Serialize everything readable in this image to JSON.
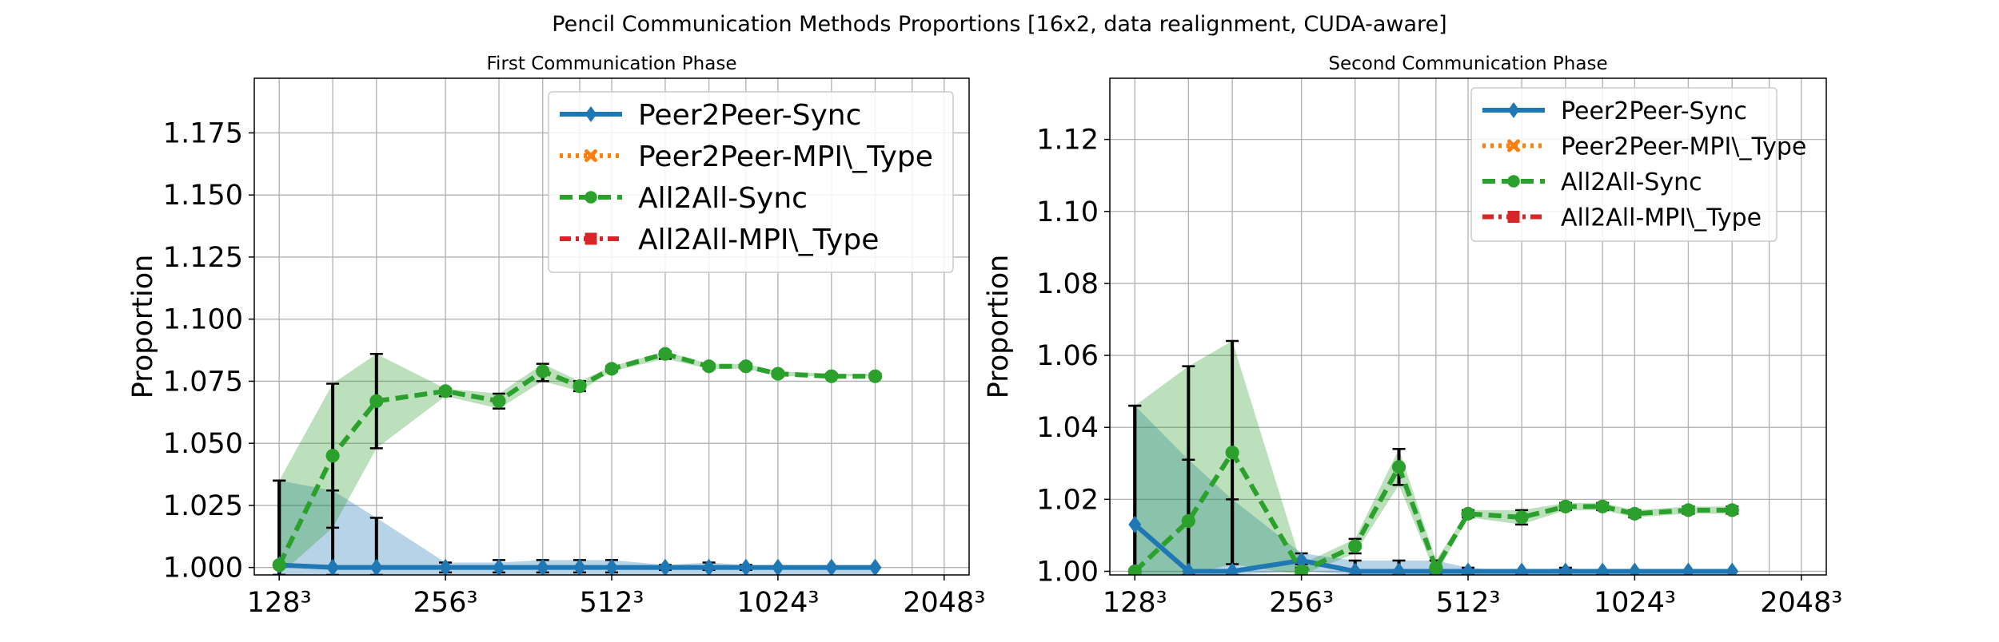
{
  "figure": {
    "suptitle": "Pencil Communication Methods Proportions [16x2, data realignment, CUDA-aware]"
  },
  "colors": {
    "Peer2Peer-Sync": "#1f77b4",
    "Peer2Peer-MPI\\_Type": "#ff7f0e",
    "All2All-Sync": "#2ca02c",
    "All2All-MPI\\_Type": "#d62728",
    "errorbar": "#000000"
  },
  "chart_data": [
    {
      "type": "line",
      "title": "First Communication Phase",
      "xlabel": "",
      "ylabel": "Proportion",
      "x_scale": "log2",
      "x_tick_labels": [
        "128³",
        "256³",
        "512³",
        "1024³",
        "2048³"
      ],
      "x": [
        128,
        160,
        192,
        256,
        320,
        384,
        448,
        512,
        640,
        768,
        896,
        1024,
        1280,
        1536,
        1792,
        2048
      ],
      "ylim": [
        0.997,
        1.197
      ],
      "y_ticks": [
        "1.000",
        "1.025",
        "1.050",
        "1.075",
        "1.100",
        "1.125",
        "1.150",
        "1.175"
      ],
      "grid": true,
      "legend_position": "top-right",
      "series": [
        {
          "name": "Peer2Peer-Sync",
          "marker": "diamond",
          "linestyle": "solid",
          "x": [
            128,
            160,
            192,
            256,
            320,
            384,
            448,
            512,
            640,
            768,
            896,
            1024,
            1280,
            1536
          ],
          "values": [
            1.001,
            1.0,
            1.0,
            1.0,
            1.0,
            1.0,
            1.0,
            1.0,
            1.0,
            1.0,
            1.0,
            1.0,
            1.0,
            1.0
          ],
          "band_low": [
            0.997,
            0.997,
            0.997,
            0.997,
            0.997,
            0.997,
            0.997,
            0.997,
            0.997,
            0.997,
            0.997,
            0.997,
            0.997,
            0.997
          ],
          "band_high": [
            1.035,
            1.031,
            1.02,
            1.002,
            1.002,
            1.003,
            1.003,
            1.003,
            1.001,
            1.002,
            1.001,
            1.0,
            1.0,
            1.0
          ],
          "err_low": [
            0.997,
            0.997,
            0.997,
            0.998,
            0.998,
            0.998,
            0.998,
            0.998,
            0.999,
            0.999,
            0.999,
            1.0,
            1.0,
            1.0
          ],
          "err_high": [
            1.035,
            1.031,
            1.02,
            1.002,
            1.003,
            1.003,
            1.003,
            1.003,
            1.001,
            1.002,
            1.001,
            1.0,
            1.0,
            1.0
          ]
        },
        {
          "name": "Peer2Peer-MPI\\_Type",
          "marker": "x",
          "linestyle": "dotted",
          "x": [],
          "values": []
        },
        {
          "name": "All2All-Sync",
          "marker": "circle",
          "linestyle": "dashed",
          "x": [
            128,
            160,
            192,
            256,
            320,
            384,
            448,
            512,
            640,
            768,
            896,
            1024,
            1280,
            1536
          ],
          "values": [
            1.001,
            1.045,
            1.067,
            1.071,
            1.067,
            1.079,
            1.073,
            1.08,
            1.086,
            1.081,
            1.081,
            1.078,
            1.077,
            1.077
          ],
          "band_low": [
            0.997,
            1.016,
            1.048,
            1.069,
            1.064,
            1.075,
            1.071,
            1.079,
            1.084,
            1.08,
            1.08,
            1.077,
            1.077,
            1.077
          ],
          "band_high": [
            1.035,
            1.074,
            1.086,
            1.072,
            1.07,
            1.082,
            1.075,
            1.081,
            1.087,
            1.082,
            1.082,
            1.079,
            1.078,
            1.078
          ],
          "err_low": [
            0.997,
            1.016,
            1.048,
            1.069,
            1.064,
            1.075,
            1.071,
            1.079,
            1.084,
            1.08,
            1.08,
            1.077,
            1.077,
            1.077
          ],
          "err_high": [
            1.035,
            1.074,
            1.086,
            1.072,
            1.07,
            1.082,
            1.075,
            1.081,
            1.087,
            1.082,
            1.082,
            1.079,
            1.078,
            1.078
          ]
        },
        {
          "name": "All2All-MPI\\_Type",
          "marker": "square",
          "linestyle": "dashdot",
          "x": [],
          "values": []
        }
      ]
    },
    {
      "type": "line",
      "title": "Second Communication Phase",
      "xlabel": "",
      "ylabel": "Proportion",
      "x_scale": "log2",
      "x_tick_labels": [
        "128³",
        "256³",
        "512³",
        "1024³",
        "2048³"
      ],
      "x": [
        128,
        160,
        192,
        256,
        320,
        384,
        448,
        512,
        640,
        768,
        896,
        1024,
        1280,
        1536,
        1792,
        2048
      ],
      "ylim": [
        0.999,
        1.137
      ],
      "y_ticks": [
        "1.00",
        "1.02",
        "1.04",
        "1.06",
        "1.08",
        "1.10",
        "1.12"
      ],
      "grid": true,
      "legend_position": "top-right",
      "series": [
        {
          "name": "Peer2Peer-Sync",
          "marker": "diamond",
          "linestyle": "solid",
          "x": [
            128,
            160,
            192,
            256,
            320,
            384,
            448,
            512,
            640,
            768,
            896,
            1024,
            1280,
            1536
          ],
          "values": [
            1.013,
            1.0,
            1.0,
            1.003,
            1.0,
            1.0,
            1.0,
            1.0,
            1.0,
            1.0,
            1.0,
            1.0,
            1.0,
            1.0
          ],
          "band_low": [
            0.999,
            0.999,
            0.999,
            1.0,
            0.999,
            0.999,
            0.999,
            0.999,
            0.999,
            0.999,
            0.999,
            0.999,
            0.999,
            0.999
          ],
          "band_high": [
            1.046,
            1.031,
            1.02,
            1.005,
            1.003,
            1.003,
            1.003,
            1.001,
            1.0,
            1.001,
            1.0,
            1.0,
            1.0,
            1.0
          ],
          "err_low": [
            0.999,
            0.999,
            0.999,
            1.001,
            0.999,
            0.999,
            0.999,
            0.999,
            0.999,
            0.999,
            0.999,
            1.0,
            1.0,
            1.0
          ],
          "err_high": [
            1.046,
            1.031,
            1.02,
            1.005,
            1.003,
            1.003,
            1.003,
            1.001,
            1.0,
            1.001,
            1.0,
            1.0,
            1.0,
            1.0
          ]
        },
        {
          "name": "Peer2Peer-MPI\\_Type",
          "marker": "x",
          "linestyle": "dotted",
          "x": [],
          "values": []
        },
        {
          "name": "All2All-Sync",
          "marker": "circle",
          "linestyle": "dashed",
          "x": [
            128,
            160,
            192,
            256,
            320,
            384,
            448,
            512,
            640,
            768,
            896,
            1024,
            1280,
            1536
          ],
          "values": [
            1.0,
            1.014,
            1.033,
            1.0,
            1.007,
            1.029,
            1.001,
            1.016,
            1.015,
            1.018,
            1.018,
            1.016,
            1.017,
            1.017
          ],
          "band_low": [
            0.999,
            0.999,
            1.002,
            0.999,
            1.005,
            1.024,
            0.999,
            1.015,
            1.013,
            1.017,
            1.017,
            1.015,
            1.016,
            1.016
          ],
          "band_high": [
            1.046,
            1.057,
            1.064,
            1.002,
            1.009,
            1.034,
            1.003,
            1.017,
            1.017,
            1.019,
            1.019,
            1.017,
            1.018,
            1.018
          ],
          "err_low": [
            0.999,
            0.999,
            1.002,
            0.999,
            1.005,
            1.024,
            0.999,
            1.015,
            1.013,
            1.017,
            1.017,
            1.015,
            1.016,
            1.016
          ],
          "err_high": [
            1.046,
            1.057,
            1.064,
            1.002,
            1.009,
            1.034,
            1.003,
            1.017,
            1.017,
            1.019,
            1.019,
            1.017,
            1.018,
            1.018
          ]
        },
        {
          "name": "All2All-MPI\\_Type",
          "marker": "square",
          "linestyle": "dashdot",
          "x": [],
          "values": []
        }
      ]
    }
  ]
}
